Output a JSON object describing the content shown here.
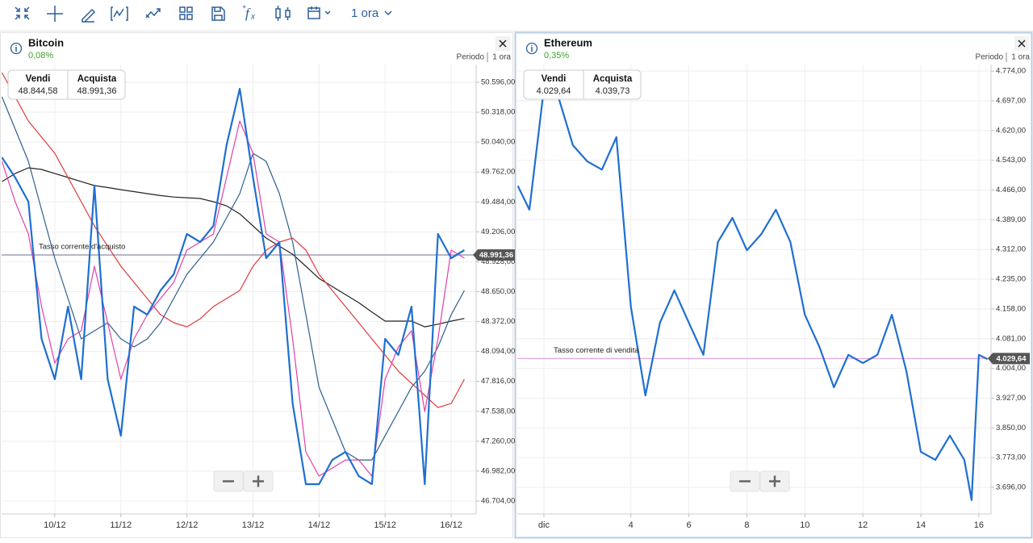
{
  "toolbar": {
    "timeframe": "1 ora"
  },
  "panels": [
    {
      "title": "Bitcoin",
      "change": "0,08%",
      "period_label": "Periodo",
      "period": "1 ora",
      "sell_label": "Vendi",
      "sell": "48.844,58",
      "buy_label": "Acquista",
      "buy": "48.991,36",
      "rate_label": "Tasso corrente d'acquisto",
      "chart_data": {
        "type": "line",
        "current_rate": {
          "value": 48991.36,
          "label": "48.991,36"
        },
        "rate_color": "#8a8aa8",
        "xlim": [
          9.195,
          16.378
        ],
        "ylim": [
          46584,
          50761
        ],
        "grid": true,
        "xticks": [
          {
            "value": 10,
            "label": "10/12"
          },
          {
            "value": 11,
            "label": "11/12"
          },
          {
            "value": 12,
            "label": "12/12"
          },
          {
            "value": 13,
            "label": "13/12"
          },
          {
            "value": 14,
            "label": "14/12"
          },
          {
            "value": 15,
            "label": "15/12"
          },
          {
            "value": 16,
            "label": "16/12"
          }
        ],
        "yticks": [
          {
            "value": 46704,
            "label": "46.704,00"
          },
          {
            "value": 46982,
            "label": "46.982,00"
          },
          {
            "value": 47260,
            "label": "47.260,00"
          },
          {
            "value": 47538,
            "label": "47.538,00"
          },
          {
            "value": 47816,
            "label": "47.816,00"
          },
          {
            "value": 48094,
            "label": "48.094,00"
          },
          {
            "value": 48372,
            "label": "48.372,00"
          },
          {
            "value": 48650,
            "label": "48.650,00"
          },
          {
            "value": 48928,
            "label": "48.928,00"
          },
          {
            "value": 49206,
            "label": "49.206,00"
          },
          {
            "value": 49484,
            "label": "49.484,00"
          },
          {
            "value": 49762,
            "label": "49.762,00"
          },
          {
            "value": 50040,
            "label": "50.040,00"
          },
          {
            "value": 50318,
            "label": "50.318,00"
          },
          {
            "value": 50596,
            "label": "50.596,00"
          }
        ],
        "x": [
          9.2,
          9.4,
          9.6,
          9.8,
          10.0,
          10.2,
          10.4,
          10.6,
          10.8,
          11.0,
          11.2,
          11.4,
          11.6,
          11.8,
          12.0,
          12.2,
          12.4,
          12.6,
          12.8,
          13.0,
          13.2,
          13.4,
          13.6,
          13.8,
          14.0,
          14.2,
          14.4,
          14.6,
          14.8,
          15.0,
          15.2,
          15.4,
          15.6,
          15.8,
          16.0,
          16.2
        ],
        "series": [
          {
            "color": "#222222",
            "width": 1.2,
            "values": [
              49673,
              49748,
              49801,
              49786,
              49748,
              49711,
              49673,
              49636,
              49618,
              49598,
              49580,
              49561,
              49543,
              49530,
              49523,
              49516,
              49486,
              49448,
              49373,
              49261,
              49148,
              49073,
              48998,
              48886,
              48773,
              48698,
              48623,
              48548,
              48461,
              48376,
              48376,
              48376,
              48323,
              48348,
              48376,
              48401
            ]
          },
          {
            "color": "#e03a3a",
            "width": 1.2,
            "values": [
              50686,
              50461,
              50236,
              50086,
              49936,
              49711,
              49486,
              49261,
              49073,
              48886,
              48736,
              48586,
              48436,
              48361,
              48323,
              48398,
              48511,
              48586,
              48661,
              48886,
              49036,
              49111,
              49148,
              49036,
              48811,
              48661,
              48511,
              48361,
              48211,
              48061,
              47911,
              47798,
              47686,
              47573,
              47611,
              47836
            ]
          },
          {
            "color": "#2d5f8f",
            "width": 1.2,
            "values": [
              50461,
              50161,
              49861,
              49411,
              48961,
              48586,
              48211,
              48286,
              48361,
              48211,
              48136,
              48211,
              48361,
              48586,
              48811,
              48961,
              49111,
              49336,
              49561,
              49936,
              49861,
              49561,
              49111,
              48436,
              47761,
              47461,
              47161,
              47086,
              47086,
              47311,
              47536,
              47761,
              47911,
              48136,
              48436,
              48661
            ]
          },
          {
            "color": "#e040a8",
            "width": 1.2,
            "values": [
              49861,
              49486,
              49186,
              48511,
              47986,
              48211,
              48286,
              48886,
              48361,
              47836,
              48211,
              48436,
              48586,
              48736,
              49036,
              49111,
              49186,
              49711,
              50236,
              49936,
              49186,
              49111,
              48211,
              47161,
              46936,
              47011,
              47086,
              47086,
              46936,
              47836,
              48136,
              48286,
              47536,
              48211,
              49036,
              48961
            ]
          },
          {
            "color": "#1f6fd1",
            "width": 2.2,
            "values": [
              49898,
              49711,
              49486,
              48211,
              47836,
              48511,
              47836,
              49636,
              47836,
              47311,
              48511,
              48436,
              48661,
              48811,
              49186,
              49111,
              49261,
              50011,
              50536,
              49711,
              48961,
              49111,
              47611,
              46861,
              46861,
              47086,
              47161,
              46936,
              46861,
              48211,
              48061,
              48511,
              46861,
              49186,
              48961,
              49036
            ]
          }
        ]
      }
    },
    {
      "title": "Ethereum",
      "change": "0,35%",
      "period_label": "Periodo",
      "period": "1 ora",
      "sell_label": "Vendi",
      "sell": "4.029,64",
      "buy_label": "Acquista",
      "buy": "4.039,73",
      "rate_label": "Tasso corrente di vendita",
      "chart_data": {
        "type": "line",
        "current_rate": {
          "value": 4029.64,
          "label": "4.029,64"
        },
        "rate_color": "#e49be0",
        "xlim": [
          0.083,
          16.42
        ],
        "ylim": [
          3627,
          4791
        ],
        "grid": true,
        "xticks": [
          {
            "value": 1,
            "label": "dic"
          },
          4,
          6,
          8,
          10,
          12,
          14,
          16
        ],
        "yticks": [
          {
            "value": 3696,
            "label": "3.696,00"
          },
          {
            "value": 3773,
            "label": "3.773,00"
          },
          {
            "value": 3850,
            "label": "3.850,00"
          },
          {
            "value": 3927,
            "label": "3.927,00"
          },
          {
            "value": 4004,
            "label": "4.004,00"
          },
          {
            "value": 4081,
            "label": "4.081,00"
          },
          {
            "value": 4158,
            "label": "4.158,00"
          },
          {
            "value": 4235,
            "label": "4.235,00"
          },
          {
            "value": 4312,
            "label": "4.312,00"
          },
          {
            "value": 4389,
            "label": "4.389,00"
          },
          {
            "value": 4466,
            "label": "4.466,00"
          },
          {
            "value": 4543,
            "label": "4.543,00"
          },
          {
            "value": 4620,
            "label": "4.620,00"
          },
          {
            "value": 4697,
            "label": "4.697,00"
          },
          {
            "value": 4774,
            "label": "4.774,00"
          }
        ],
        "x": [
          0.1,
          0.5,
          1.0,
          1.5,
          2.0,
          2.5,
          3.0,
          3.5,
          4.0,
          4.5,
          5.0,
          5.5,
          6.0,
          6.5,
          7.0,
          7.5,
          8.0,
          8.5,
          9.0,
          9.5,
          10.0,
          10.5,
          11.0,
          11.5,
          12.0,
          12.5,
          13.0,
          13.5,
          14.0,
          14.5,
          15.0,
          15.5,
          15.75,
          16.0,
          16.3
        ],
        "series": [
          {
            "color": "#1f6fd1",
            "width": 2.2,
            "values": [
              4477,
              4415,
              4728,
              4707,
              4582,
              4540,
              4519,
              4603,
              4164,
              3934,
              4122,
              4206,
              4122,
              4039,
              4331,
              4394,
              4310,
              4352,
              4415,
              4331,
              4143,
              4060,
              3955,
              4039,
              4018,
              4039,
              4143,
              3997,
              3788,
              3767,
              3830,
              3767,
              3663,
              4039,
              4028
            ]
          }
        ]
      }
    }
  ]
}
